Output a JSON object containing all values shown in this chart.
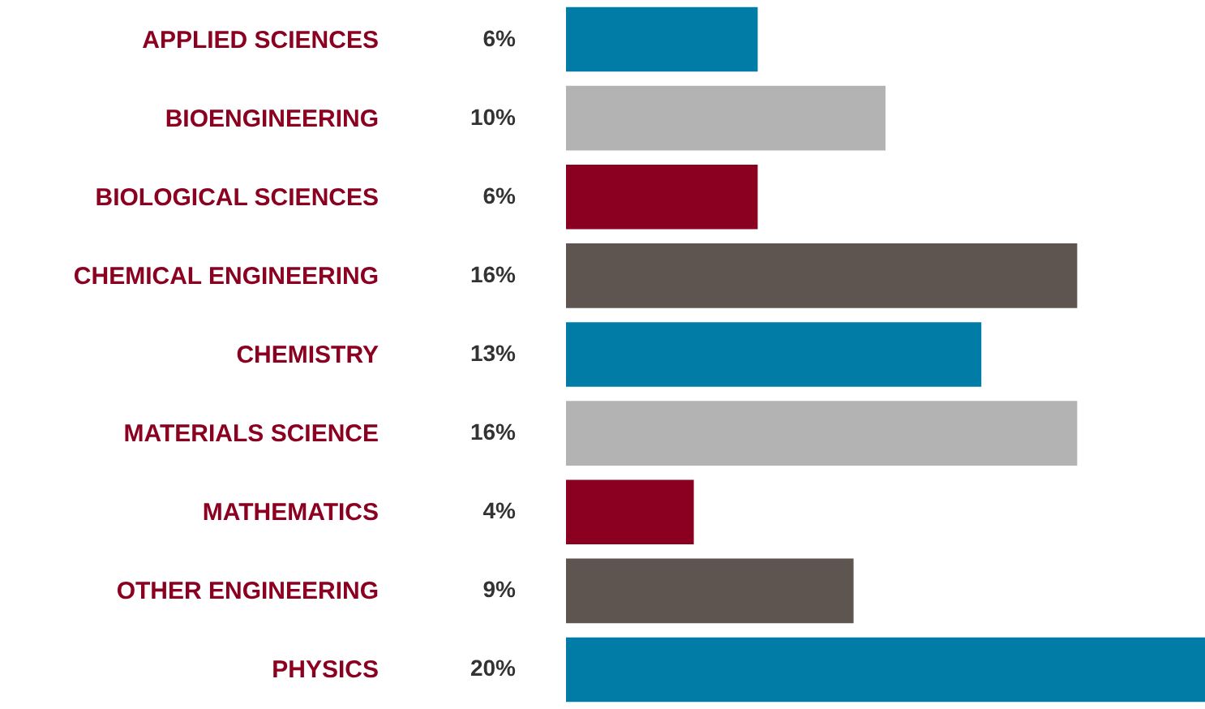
{
  "chart_data": {
    "type": "bar",
    "orientation": "horizontal",
    "categories": [
      "APPLIED SCIENCES",
      "BIOENGINEERING",
      "BIOLOGICAL SCIENCES",
      "CHEMICAL ENGINEERING",
      "CHEMISTRY",
      "MATERIALS SCIENCE",
      "MATHEMATICS",
      "OTHER ENGINEERING",
      "PHYSICS"
    ],
    "values": [
      6,
      10,
      6,
      16,
      13,
      16,
      4,
      9,
      20
    ],
    "value_labels": [
      "6%",
      "10%",
      "6%",
      "16%",
      "13%",
      "16%",
      "4%",
      "9%",
      "20%"
    ],
    "colors": [
      "#007ca6",
      "#b3b3b3",
      "#8b0020",
      "#5e5550",
      "#007ca6",
      "#b3b3b3",
      "#8b0020",
      "#5e5550",
      "#007ca6"
    ]
  }
}
